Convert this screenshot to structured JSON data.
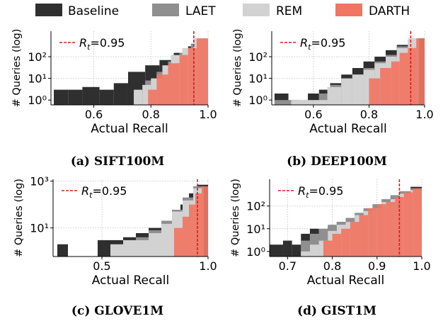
{
  "legend": [
    {
      "label": "Baseline",
      "color": "#2f2f2f"
    },
    {
      "label": "LAET",
      "color": "#8f8f8f"
    },
    {
      "label": "REM",
      "color": "#d2d2d2"
    },
    {
      "label": "DARTH",
      "color": "#f07563"
    }
  ],
  "chart_data": [
    {
      "type": "bar",
      "caption": "(a) SIFT100M",
      "xlabel": "Actual Recall",
      "ylabel": "# Queries (log)",
      "xlim": [
        0.45,
        1.0
      ],
      "ylim": [
        0.6,
        1500
      ],
      "log_y": true,
      "xticks": [
        {
          "v": 0.6,
          "t": "0.6"
        },
        {
          "v": 0.8,
          "t": "0.8"
        },
        {
          "v": 1.0,
          "t": "1.0"
        }
      ],
      "yticks": [
        {
          "v": 1,
          "t": "10⁰"
        },
        {
          "v": 10,
          "t": "10¹"
        },
        {
          "v": 100,
          "t": "10²"
        }
      ],
      "grid": true,
      "annotation": {
        "prefix": "R",
        "sub": "t",
        "suffix": "=0.95",
        "x": 0.95
      },
      "series": [
        {
          "name": "Baseline",
          "bars": [
            [
              0.46,
              0.51,
              3
            ],
            [
              0.51,
              0.56,
              3
            ],
            [
              0.56,
              0.62,
              4
            ],
            [
              0.62,
              0.67,
              3
            ],
            [
              0.67,
              0.72,
              6
            ],
            [
              0.72,
              0.78,
              20
            ],
            [
              0.78,
              0.83,
              40
            ],
            [
              0.83,
              0.88,
              70
            ],
            [
              0.88,
              0.93,
              150
            ],
            [
              0.93,
              0.97,
              300
            ],
            [
              0.97,
              1.0,
              700
            ]
          ]
        },
        {
          "name": "LAET",
          "bars": [
            [
              0.74,
              0.78,
              2
            ],
            [
              0.78,
              0.82,
              8
            ],
            [
              0.82,
              0.86,
              20
            ],
            [
              0.86,
              0.9,
              60
            ],
            [
              0.9,
              0.94,
              150
            ],
            [
              0.94,
              0.97,
              400
            ],
            [
              0.97,
              1.0,
              700
            ]
          ]
        },
        {
          "name": "REM",
          "bars": [
            [
              0.74,
              0.77,
              3
            ],
            [
              0.77,
              0.8,
              5
            ],
            [
              0.8,
              0.84,
              10
            ],
            [
              0.84,
              0.87,
              40
            ],
            [
              0.87,
              0.91,
              120
            ],
            [
              0.91,
              0.95,
              250
            ],
            [
              0.95,
              1.0,
              700
            ]
          ]
        },
        {
          "name": "DARTH",
          "bars": [
            [
              0.79,
              0.82,
              3
            ],
            [
              0.82,
              0.86,
              15
            ],
            [
              0.86,
              0.9,
              50
            ],
            [
              0.9,
              0.93,
              120
            ],
            [
              0.93,
              0.96,
              250
            ],
            [
              0.96,
              1.0,
              700
            ]
          ]
        }
      ]
    },
    {
      "type": "bar",
      "caption": "(b) DEEP100M",
      "xlabel": "Actual Recall",
      "ylabel": "# Queries (log)",
      "xlim": [
        0.45,
        1.0
      ],
      "ylim": [
        0.6,
        1500
      ],
      "log_y": true,
      "xticks": [
        {
          "v": 0.6,
          "t": "0.6"
        },
        {
          "v": 0.8,
          "t": "0.8"
        },
        {
          "v": 1.0,
          "t": "1.0"
        }
      ],
      "yticks": [
        {
          "v": 1,
          "t": "10⁰"
        },
        {
          "v": 10,
          "t": "10¹"
        },
        {
          "v": 100,
          "t": "10²"
        }
      ],
      "grid": true,
      "annotation": {
        "prefix": "R",
        "sub": "t",
        "suffix": "=0.95",
        "x": 0.95
      },
      "series": [
        {
          "name": "Baseline",
          "bars": [
            [
              0.46,
              0.51,
              2
            ],
            [
              0.58,
              0.62,
              2
            ],
            [
              0.62,
              0.66,
              3
            ],
            [
              0.66,
              0.7,
              6
            ],
            [
              0.7,
              0.74,
              15
            ],
            [
              0.74,
              0.78,
              30
            ],
            [
              0.78,
              0.82,
              60
            ],
            [
              0.82,
              0.86,
              100
            ],
            [
              0.86,
              0.9,
              200
            ],
            [
              0.9,
              0.94,
              350
            ],
            [
              0.94,
              0.97,
              600
            ],
            [
              0.97,
              1.0,
              700
            ]
          ]
        },
        {
          "name": "LAET",
          "bars": [
            [
              0.46,
              0.55,
              1
            ],
            [
              0.62,
              0.66,
              2
            ],
            [
              0.66,
              0.7,
              5
            ],
            [
              0.7,
              0.74,
              8
            ],
            [
              0.74,
              0.78,
              15
            ],
            [
              0.78,
              0.82,
              30
            ],
            [
              0.82,
              0.86,
              60
            ],
            [
              0.86,
              0.9,
              120
            ],
            [
              0.9,
              0.94,
              300
            ],
            [
              0.94,
              0.98,
              600
            ]
          ]
        },
        {
          "name": "REM",
          "bars": [
            [
              0.52,
              0.6,
              1
            ],
            [
              0.6,
              0.65,
              1
            ],
            [
              0.65,
              0.7,
              4
            ],
            [
              0.7,
              0.74,
              10
            ],
            [
              0.74,
              0.78,
              15
            ],
            [
              0.78,
              0.82,
              25
            ],
            [
              0.82,
              0.86,
              50
            ],
            [
              0.86,
              0.9,
              100
            ],
            [
              0.9,
              0.94,
              250
            ],
            [
              0.94,
              0.98,
              700
            ]
          ]
        },
        {
          "name": "DARTH",
          "bars": [
            [
              0.8,
              0.84,
              10
            ],
            [
              0.84,
              0.88,
              30
            ],
            [
              0.88,
              0.91,
              60
            ],
            [
              0.91,
              0.94,
              150
            ],
            [
              0.94,
              0.97,
              250
            ],
            [
              0.97,
              1.0,
              700
            ]
          ]
        }
      ]
    },
    {
      "type": "bar",
      "caption": "(c) GLOVE1M",
      "xlabel": "Actual Recall",
      "ylabel": "# Queries (log)",
      "xlim": [
        0.27,
        1.0
      ],
      "ylim": [
        0.6,
        1200
      ],
      "log_y": true,
      "xticks": [
        {
          "v": 0.5,
          "t": "0.5"
        },
        {
          "v": 1.0,
          "t": "1.0"
        }
      ],
      "yticks": [
        {
          "v": 10,
          "t": "10¹"
        },
        {
          "v": 1000,
          "t": "10³"
        }
      ],
      "grid": true,
      "annotation": {
        "prefix": "R",
        "sub": "t",
        "suffix": "=0.95",
        "x": 0.95
      },
      "series": [
        {
          "name": "Baseline",
          "bars": [
            [
              0.29,
              0.34,
              2
            ],
            [
              0.48,
              0.54,
              3
            ],
            [
              0.54,
              0.6,
              3
            ],
            [
              0.6,
              0.66,
              4
            ],
            [
              0.66,
              0.72,
              6
            ],
            [
              0.72,
              0.78,
              10
            ],
            [
              0.78,
              0.83,
              20
            ],
            [
              0.83,
              0.87,
              40
            ],
            [
              0.87,
              0.91,
              100
            ],
            [
              0.91,
              0.95,
              300
            ],
            [
              0.95,
              1.0,
              700
            ]
          ]
        },
        {
          "name": "LAET",
          "bars": [
            [
              0.6,
              0.66,
              2
            ],
            [
              0.66,
              0.72,
              4
            ],
            [
              0.72,
              0.78,
              8
            ],
            [
              0.78,
              0.83,
              20
            ],
            [
              0.83,
              0.88,
              60
            ],
            [
              0.88,
              0.93,
              200
            ],
            [
              0.93,
              0.98,
              600
            ]
          ]
        },
        {
          "name": "REM",
          "bars": [
            [
              0.54,
              0.6,
              2
            ],
            [
              0.6,
              0.66,
              3
            ],
            [
              0.66,
              0.72,
              3
            ],
            [
              0.72,
              0.78,
              6
            ],
            [
              0.78,
              0.83,
              15
            ],
            [
              0.83,
              0.88,
              50
            ],
            [
              0.88,
              0.93,
              150
            ],
            [
              0.93,
              0.98,
              500
            ]
          ]
        },
        {
          "name": "DARTH",
          "bars": [
            [
              0.84,
              0.88,
              10
            ],
            [
              0.88,
              0.91,
              30
            ],
            [
              0.91,
              0.94,
              100
            ],
            [
              0.94,
              0.97,
              300
            ],
            [
              0.97,
              1.0,
              600
            ]
          ]
        }
      ]
    },
    {
      "type": "bar",
      "caption": "(d) GIST1M",
      "xlabel": "Actual Recall",
      "ylabel": "# Queries (log)",
      "xlim": [
        0.66,
        1.0
      ],
      "ylim": [
        0.6,
        1500
      ],
      "log_y": true,
      "xticks": [
        {
          "v": 0.7,
          "t": "0.7"
        },
        {
          "v": 0.8,
          "t": "0.8"
        },
        {
          "v": 0.9,
          "t": "0.9"
        },
        {
          "v": 1.0,
          "t": "1.0"
        }
      ],
      "yticks": [
        {
          "v": 1,
          "t": "10⁰"
        },
        {
          "v": 10,
          "t": "10¹"
        },
        {
          "v": 100,
          "t": "10²"
        }
      ],
      "grid": true,
      "annotation": {
        "prefix": "R",
        "sub": "t",
        "suffix": "=0.95",
        "x": 0.95
      },
      "series": [
        {
          "name": "Baseline",
          "bars": [
            [
              0.66,
              0.69,
              2
            ],
            [
              0.69,
              0.71,
              3
            ],
            [
              0.71,
              0.73,
              2
            ],
            [
              0.73,
              0.75,
              6
            ],
            [
              0.75,
              0.77,
              10
            ],
            [
              0.77,
              0.79,
              8
            ],
            [
              0.79,
              0.81,
              12
            ],
            [
              0.81,
              0.83,
              20
            ],
            [
              0.83,
              0.85,
              30
            ],
            [
              0.85,
              0.87,
              40
            ],
            [
              0.87,
              0.89,
              70
            ],
            [
              0.89,
              0.91,
              100
            ],
            [
              0.91,
              0.93,
              150
            ],
            [
              0.93,
              0.95,
              250
            ],
            [
              0.95,
              0.975,
              400
            ],
            [
              0.975,
              1.0,
              700
            ]
          ]
        },
        {
          "name": "LAET",
          "bars": [
            [
              0.73,
              0.75,
              3
            ],
            [
              0.75,
              0.77,
              6
            ],
            [
              0.77,
              0.79,
              10
            ],
            [
              0.79,
              0.81,
              15
            ],
            [
              0.81,
              0.83,
              20
            ],
            [
              0.83,
              0.85,
              30
            ],
            [
              0.85,
              0.87,
              50
            ],
            [
              0.87,
              0.89,
              80
            ],
            [
              0.89,
              0.91,
              120
            ],
            [
              0.91,
              0.93,
              200
            ],
            [
              0.93,
              0.95,
              300
            ],
            [
              0.95,
              0.975,
              450
            ],
            [
              0.975,
              1.0,
              600
            ]
          ]
        },
        {
          "name": "REM",
          "bars": [
            [
              0.73,
              0.75,
              1
            ],
            [
              0.75,
              0.77,
              2
            ],
            [
              0.77,
              0.79,
              3
            ],
            [
              0.79,
              0.81,
              8
            ],
            [
              0.81,
              0.83,
              15
            ],
            [
              0.83,
              0.85,
              20
            ],
            [
              0.85,
              0.87,
              40
            ],
            [
              0.87,
              0.89,
              60
            ],
            [
              0.89,
              0.91,
              80
            ],
            [
              0.91,
              0.93,
              150
            ],
            [
              0.93,
              0.95,
              200
            ],
            [
              0.95,
              0.975,
              350
            ],
            [
              0.975,
              1.0,
              500
            ]
          ]
        },
        {
          "name": "DARTH",
          "bars": [
            [
              0.78,
              0.8,
              3
            ],
            [
              0.8,
              0.82,
              6
            ],
            [
              0.82,
              0.84,
              10
            ],
            [
              0.84,
              0.86,
              20
            ],
            [
              0.86,
              0.88,
              40
            ],
            [
              0.88,
              0.9,
              80
            ],
            [
              0.9,
              0.92,
              120
            ],
            [
              0.92,
              0.94,
              150
            ],
            [
              0.94,
              0.96,
              250
            ],
            [
              0.96,
              0.98,
              400
            ],
            [
              0.98,
              1.0,
              600
            ]
          ]
        }
      ]
    }
  ]
}
